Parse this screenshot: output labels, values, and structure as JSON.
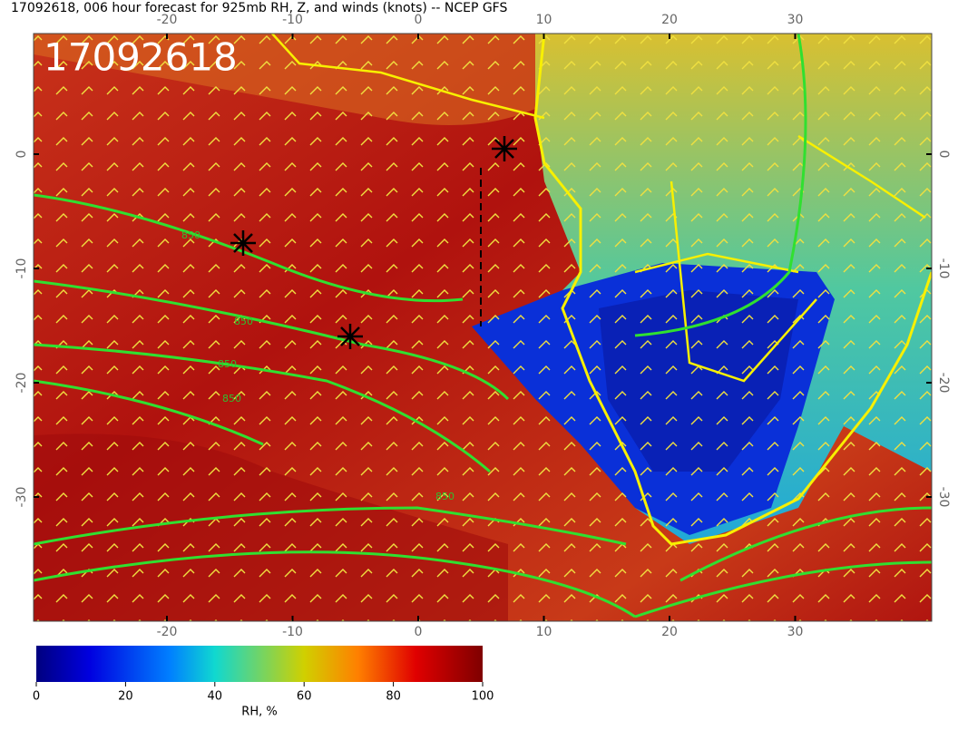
{
  "header": {
    "title": "17092618, 006 hour forecast for 925mb RH, Z, and winds (knots) -- NCEP GFS",
    "stamp": "17092618"
  },
  "map": {
    "lon_ticks": [
      -20,
      -10,
      0,
      10,
      20,
      30
    ],
    "lat_ticks": [
      0,
      -10,
      -20,
      -30
    ],
    "contour_labels": [
      "850",
      "850",
      "850",
      "850",
      "850"
    ]
  },
  "colorbar": {
    "ticks": [
      0,
      20,
      40,
      60,
      80,
      100
    ],
    "label": "RH, %"
  }
}
